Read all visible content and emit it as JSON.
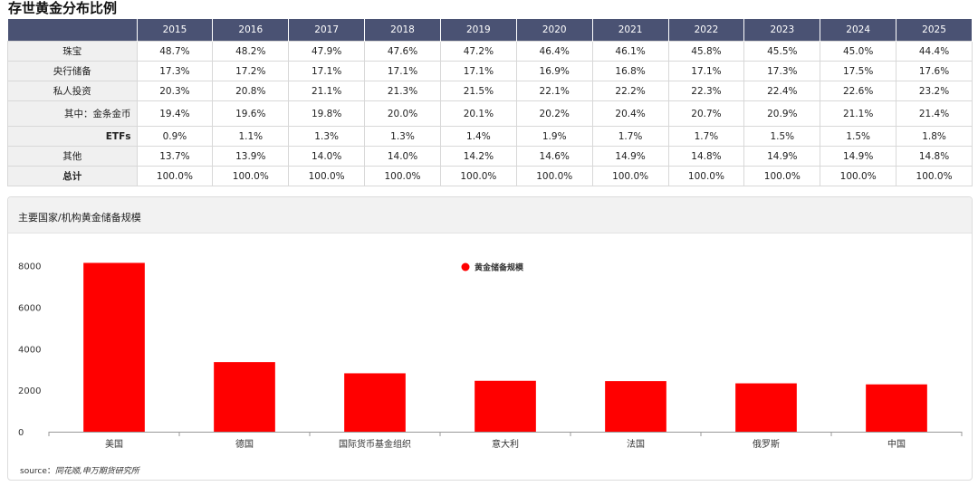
{
  "page_title": "存世黄金分布比例",
  "distribution_table": {
    "years": [
      "2015",
      "2016",
      "2017",
      "2018",
      "2019",
      "2020",
      "2021",
      "2022",
      "2023",
      "2024",
      "2025"
    ],
    "rows": [
      {
        "label": "珠宝",
        "indent": false,
        "bold": false,
        "values": [
          "48.7%",
          "48.2%",
          "47.9%",
          "47.6%",
          "47.2%",
          "46.4%",
          "46.1%",
          "45.8%",
          "45.5%",
          "45.0%",
          "44.4%"
        ]
      },
      {
        "label": "央行储备",
        "indent": false,
        "bold": false,
        "values": [
          "17.3%",
          "17.2%",
          "17.1%",
          "17.1%",
          "17.1%",
          "16.9%",
          "16.8%",
          "17.1%",
          "17.3%",
          "17.5%",
          "17.6%"
        ]
      },
      {
        "label": "私人投资",
        "indent": false,
        "bold": false,
        "values": [
          "20.3%",
          "20.8%",
          "21.1%",
          "21.3%",
          "21.5%",
          "22.1%",
          "22.2%",
          "22.3%",
          "22.4%",
          "22.6%",
          "23.2%"
        ]
      },
      {
        "label": "其中：金条金币",
        "indent": true,
        "bold": false,
        "values": [
          "19.4%",
          "19.6%",
          "19.8%",
          "20.0%",
          "20.1%",
          "20.2%",
          "20.4%",
          "20.7%",
          "20.9%",
          "21.1%",
          "21.4%"
        ]
      },
      {
        "label": "ETFs",
        "indent": true,
        "bold": true,
        "values": [
          "0.9%",
          "1.1%",
          "1.3%",
          "1.3%",
          "1.4%",
          "1.9%",
          "1.7%",
          "1.7%",
          "1.5%",
          "1.5%",
          "1.8%"
        ]
      },
      {
        "label": "其他",
        "indent": false,
        "bold": false,
        "values": [
          "13.7%",
          "13.9%",
          "14.0%",
          "14.0%",
          "14.2%",
          "14.6%",
          "14.9%",
          "14.8%",
          "14.9%",
          "14.9%",
          "14.8%"
        ]
      },
      {
        "label": "总计",
        "indent": false,
        "bold": true,
        "values": [
          "100.0%",
          "100.0%",
          "100.0%",
          "100.0%",
          "100.0%",
          "100.0%",
          "100.0%",
          "100.0%",
          "100.0%",
          "100.0%",
          "100.0%"
        ]
      }
    ]
  },
  "chart_panel": {
    "title": "主要国家/机构黄金储备规模",
    "source_label": "source：",
    "source_name": "同花顺,申万期货研究所"
  },
  "chart_data": {
    "type": "bar",
    "title": "",
    "categories": [
      "美国",
      "德国",
      "国际货币基金组织",
      "意大利",
      "法国",
      "俄罗斯",
      "中国"
    ],
    "series": [
      {
        "name": "黄金储备规模",
        "color": "#ff0000",
        "values": [
          8133,
          3352,
          2814,
          2452,
          2437,
          2330,
          2280
        ]
      }
    ],
    "yticks": [
      0,
      2000,
      4000,
      6000,
      8000
    ],
    "ylim": [
      0,
      9200
    ],
    "xlabel": "",
    "ylabel": "",
    "grid": false,
    "legend": "top-center"
  }
}
